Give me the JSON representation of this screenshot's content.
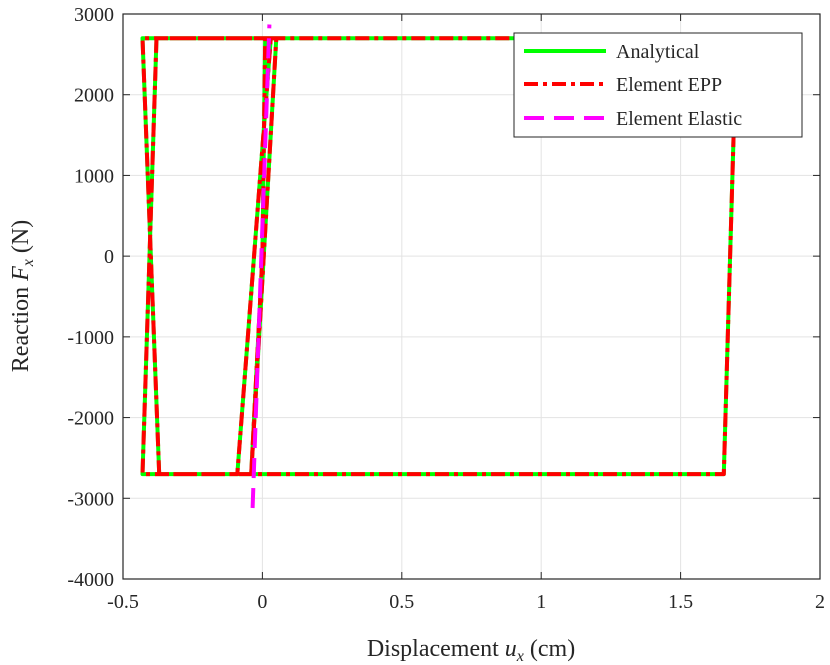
{
  "chart_data": {
    "type": "line",
    "xlabel_text": "Displacement",
    "xlabel_var": "u",
    "xlabel_sub": "x",
    "xlabel_unit": "(cm)",
    "ylabel_text": "Reaction",
    "ylabel_var": "F",
    "ylabel_sub": "x",
    "ylabel_unit": "(N)",
    "xlim": [
      -0.5,
      2
    ],
    "ylim": [
      -4000,
      3000
    ],
    "xticks": [
      -0.5,
      0,
      0.5,
      1,
      1.5,
      2
    ],
    "xtick_labels": [
      "-0.5",
      "0",
      "0.5",
      "1",
      "1.5",
      "2"
    ],
    "yticks": [
      -4000,
      -3000,
      -2000,
      -1000,
      0,
      1000,
      2000,
      3000
    ],
    "ytick_labels": [
      "-4000",
      "-3000",
      "-2000",
      "-1000",
      "0",
      "1000",
      "2000",
      "3000"
    ],
    "grid": true,
    "legend_position": "top-right",
    "series": [
      {
        "name": "Analytical",
        "color": "#00ff00",
        "style": "solid",
        "x": [
          0,
          0.01,
          0.11,
          1.7,
          1.655,
          -0.43,
          -0.38,
          0.03,
          -0.09,
          -0.37,
          -0.43,
          -0.39,
          0.05,
          -0.04,
          0
        ],
        "y": [
          0,
          2700,
          2700,
          2700,
          -2700,
          -2700,
          2700,
          2700,
          -2700,
          -2700,
          2700,
          2700,
          2700,
          -2700,
          0
        ]
      },
      {
        "name": "Element EPP",
        "color": "#ff0000",
        "style": "dash-dot",
        "x": [
          0,
          0.01,
          0.11,
          1.7,
          1.655,
          -0.43,
          -0.38,
          0.03,
          -0.09,
          -0.37,
          -0.43,
          -0.39,
          0.05,
          -0.04,
          0
        ],
        "y": [
          0,
          2700,
          2700,
          2700,
          -2700,
          -2700,
          2700,
          2700,
          -2700,
          -2700,
          2700,
          2700,
          2700,
          -2700,
          0
        ]
      },
      {
        "name": "Element Elastic",
        "color": "#ff00ff",
        "style": "dashed",
        "x": [
          -0.035,
          0.025
        ],
        "y": [
          -3120,
          2870
        ]
      }
    ]
  }
}
